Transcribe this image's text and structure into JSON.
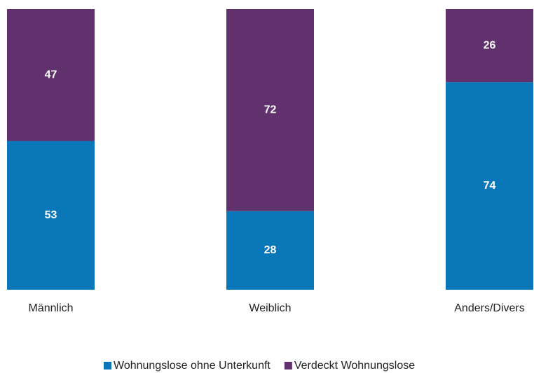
{
  "chart_data": {
    "type": "stacked_bar",
    "categories": [
      "Männlich",
      "Weiblich",
      "Anders/Divers"
    ],
    "series": [
      {
        "name": "Wohnungslose ohne Unterkunft",
        "color": "#0a77b9",
        "values": [
          53,
          28,
          74
        ]
      },
      {
        "name": "Verdeckt Wohnungslose",
        "color": "#61316e",
        "values": [
          47,
          72,
          26
        ]
      }
    ],
    "legend": "bottom"
  }
}
